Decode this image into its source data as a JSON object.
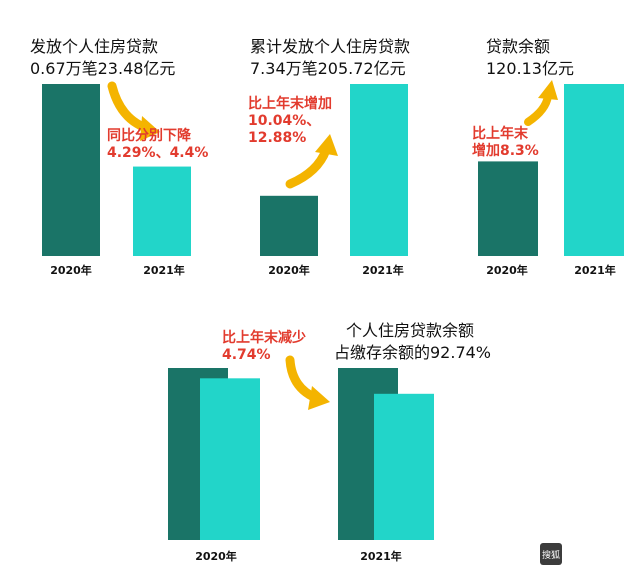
{
  "colors": {
    "dark": "#1a7467",
    "light": "#22d5c9",
    "annot": "#e23b2e",
    "arrow": "#f4b400"
  },
  "chart_data": [
    {
      "type": "bar",
      "title": "发放个人住房贷款",
      "subtitle": "0.67万笔23.48亿元",
      "categories": [
        "2020年",
        "2021年"
      ],
      "values": [
        100,
        52
      ],
      "annotation": [
        "同比分别下降",
        "4.29%、4.4%"
      ]
    },
    {
      "type": "bar",
      "title": "累计发放个人住房贷款",
      "subtitle": "7.34万笔205.72亿元",
      "categories": [
        "2020年",
        "2021年"
      ],
      "values": [
        35,
        100
      ],
      "annotation": [
        "比上年末增加",
        "10.04%、",
        "12.88%"
      ]
    },
    {
      "type": "bar",
      "title": "贷款余额",
      "subtitle": "120.13亿元",
      "categories": [
        "2020年",
        "2021年"
      ],
      "values": [
        55,
        100
      ],
      "annotation": [
        "比上年末",
        "增加8.3%"
      ]
    },
    {
      "type": "bar",
      "title": "个人住房贷款余额",
      "subtitle": "占缴存余额的92.74%",
      "categories": [
        "2020年",
        "2021年"
      ],
      "series": [
        {
          "values": [
            100,
            94
          ]
        },
        {
          "values": [
            100,
            85
          ]
        }
      ],
      "annotation": [
        "比上年末减少",
        "4.74%"
      ]
    }
  ],
  "watermark": "搜狐"
}
